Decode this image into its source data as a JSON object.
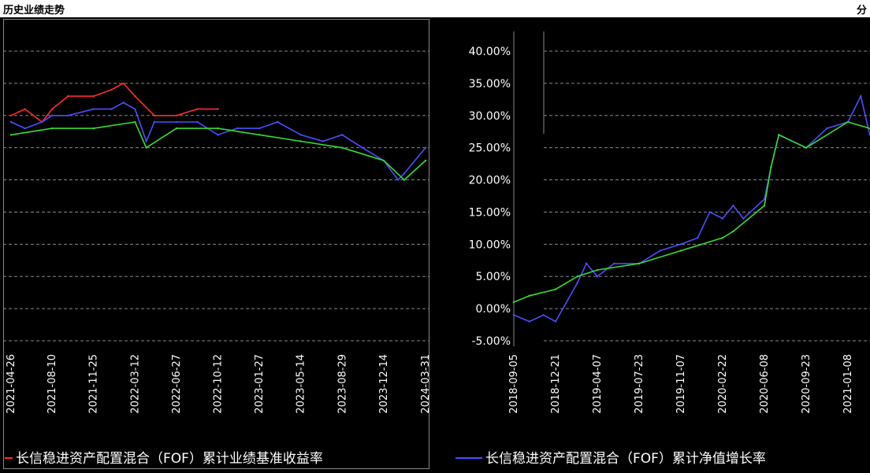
{
  "window": {
    "title": "历史业绩走势",
    "corner_text": "分"
  },
  "chart_data": [
    {
      "type": "line",
      "panel": "left",
      "title": "",
      "xlabel": "",
      "ylabel": "",
      "x_tick_labels": [
        "2021-04-26",
        "2021-08-10",
        "2021-11-25",
        "2022-03-12",
        "2022-06-27",
        "2022-10-12",
        "2023-01-27",
        "2023-05-14",
        "2023-08-29",
        "2023-12-14",
        "2024-03-31"
      ],
      "grid": true,
      "legend_position": "bottom",
      "series": [
        {
          "name": "长信稳进资产配置混合（FOF）累计业绩基准收益率",
          "color": "#ff2a2a",
          "x": [
            "2021-04-26",
            "2021-06-01",
            "2021-07-15",
            "2021-08-10",
            "2021-09-20",
            "2021-11-25",
            "2022-01-10",
            "2022-02-10",
            "2022-03-12",
            "2022-05-01",
            "2022-06-27",
            "2022-08-20",
            "2022-10-12"
          ],
          "values": [
            30,
            31,
            29,
            31,
            33,
            33,
            34,
            35,
            33,
            30,
            30,
            31,
            31
          ]
        },
        {
          "color": "#4d4dff",
          "x": [
            "2021-04-26",
            "2021-06-01",
            "2021-07-15",
            "2021-08-10",
            "2021-09-20",
            "2021-11-25",
            "2022-01-10",
            "2022-02-10",
            "2022-03-12",
            "2022-04-10",
            "2022-05-01",
            "2022-06-27",
            "2022-08-20",
            "2022-10-12",
            "2022-12-01",
            "2023-01-27",
            "2023-03-15",
            "2023-05-14",
            "2023-07-10",
            "2023-08-29",
            "2023-10-20",
            "2023-12-14",
            "2024-01-20",
            "2024-02-05",
            "2024-03-31"
          ],
          "values": [
            29,
            28,
            29,
            30,
            30,
            31,
            31,
            32,
            31,
            26,
            29,
            29,
            29,
            27,
            28,
            28,
            29,
            27,
            26,
            27,
            25,
            23,
            20,
            21,
            25
          ]
        },
        {
          "color": "#33dd33",
          "x": [
            "2021-04-26",
            "2021-08-10",
            "2021-11-25",
            "2022-03-12",
            "2022-04-10",
            "2022-06-27",
            "2022-10-12",
            "2023-01-27",
            "2023-05-14",
            "2023-08-29",
            "2023-12-14",
            "2024-02-05",
            "2024-03-31"
          ],
          "values": [
            27,
            28,
            28,
            29,
            25,
            28,
            28,
            27,
            26,
            25,
            23,
            20,
            23
          ]
        }
      ]
    },
    {
      "type": "line",
      "panel": "right",
      "title": "",
      "xlabel": "",
      "ylabel": "",
      "y_tick_labels": [
        "40.00%",
        "35.00%",
        "30.00%",
        "25.00%",
        "20.00%",
        "15.00%",
        "10.00%",
        "5.00%",
        "0.00%",
        "-5.00%"
      ],
      "ylim": [
        -5,
        40
      ],
      "x_tick_labels": [
        "2018-09-05",
        "2018-12-21",
        "2019-04-07",
        "2019-07-23",
        "2019-11-07",
        "2020-02-22",
        "2020-06-08",
        "2020-09-23",
        "2021-01-08"
      ],
      "grid": true,
      "legend_position": "bottom",
      "series": [
        {
          "name": "长信稳进资产配置混合（FOF）累计净值增长率",
          "color": "#4d4dff",
          "x": [
            "2018-09-05",
            "2018-10-15",
            "2018-11-20",
            "2018-12-21",
            "2019-02-15",
            "2019-03-10",
            "2019-04-07",
            "2019-05-20",
            "2019-07-23",
            "2019-09-15",
            "2019-11-07",
            "2019-12-20",
            "2020-01-20",
            "2020-02-22",
            "2020-03-20",
            "2020-04-15",
            "2020-06-08",
            "2020-06-25",
            "2020-07-15",
            "2020-09-23",
            "2020-11-15",
            "2021-01-08",
            "2021-02-10",
            "2021-03-05"
          ],
          "values": [
            -1,
            -2,
            -1,
            -2,
            4,
            7,
            5,
            7,
            7,
            9,
            10,
            11,
            15,
            14,
            16,
            14,
            17,
            22,
            27,
            25,
            28,
            29,
            33,
            27
          ]
        },
        {
          "color": "#33dd33",
          "x": [
            "2018-09-05",
            "2018-10-15",
            "2018-12-21",
            "2019-02-15",
            "2019-04-07",
            "2019-07-23",
            "2019-11-07",
            "2020-02-22",
            "2020-03-20",
            "2020-06-08",
            "2020-06-25",
            "2020-07-15",
            "2020-09-23",
            "2021-01-08",
            "2021-03-05"
          ],
          "values": [
            1,
            2,
            3,
            5,
            6,
            7,
            9,
            11,
            12,
            16,
            22,
            27,
            25,
            29,
            28
          ]
        }
      ]
    }
  ]
}
